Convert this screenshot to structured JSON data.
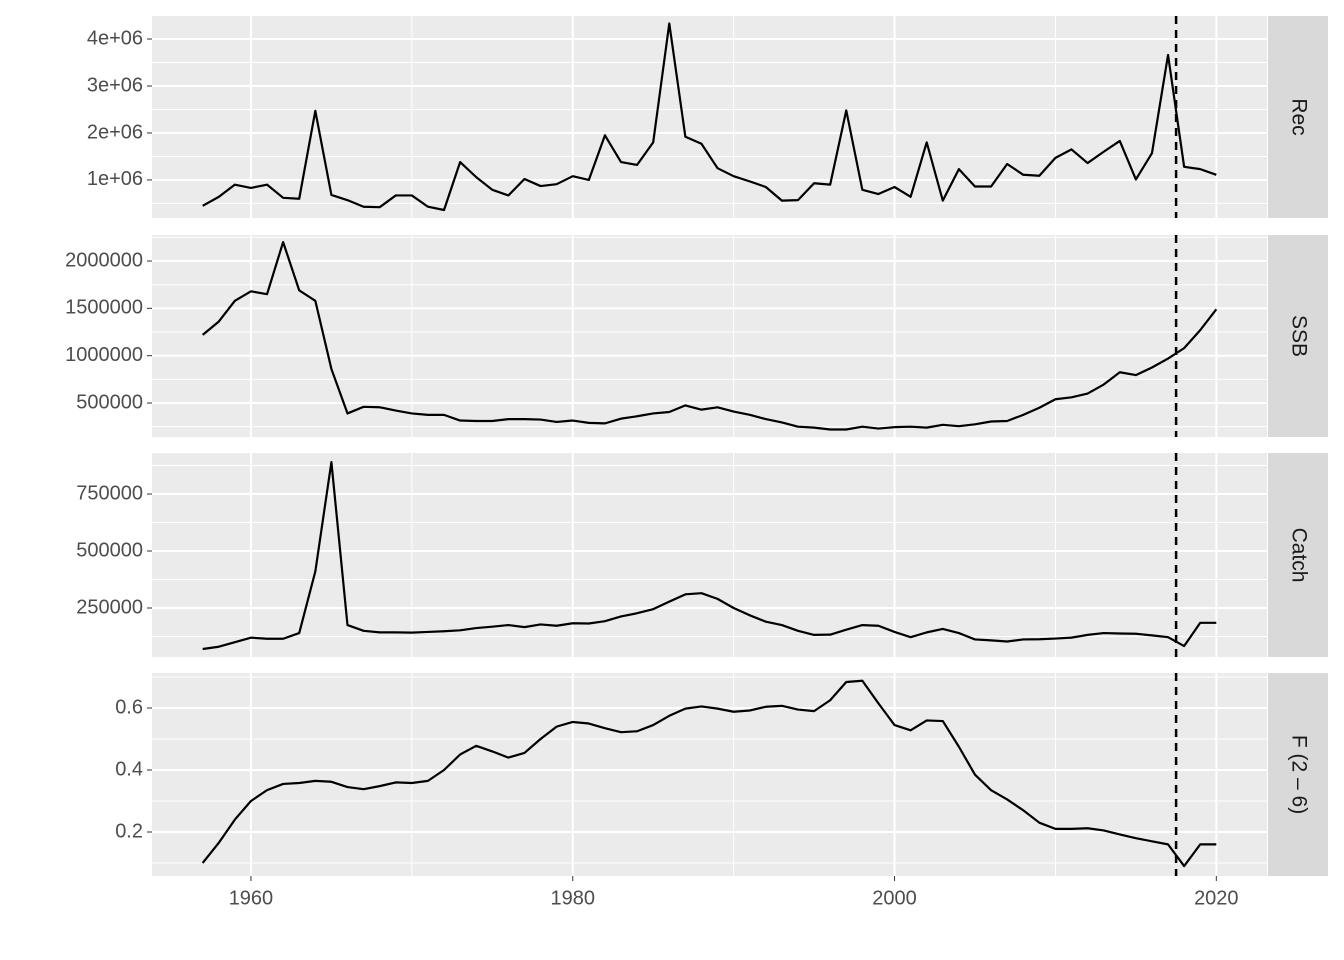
{
  "chart_data": {
    "type": "line",
    "x": [
      1957,
      1958,
      1959,
      1960,
      1961,
      1962,
      1963,
      1964,
      1965,
      1966,
      1967,
      1968,
      1969,
      1970,
      1971,
      1972,
      1973,
      1974,
      1975,
      1976,
      1977,
      1978,
      1979,
      1980,
      1981,
      1982,
      1983,
      1984,
      1985,
      1986,
      1987,
      1988,
      1989,
      1990,
      1991,
      1992,
      1993,
      1994,
      1995,
      1996,
      1997,
      1998,
      1999,
      2000,
      2001,
      2002,
      2003,
      2004,
      2005,
      2006,
      2007,
      2008,
      2009,
      2010,
      2011,
      2012,
      2013,
      2014,
      2015,
      2016,
      2017,
      2018,
      2019,
      2020
    ],
    "xlim": [
      1953.85,
      2023.15
    ],
    "xticks": [
      1960,
      1980,
      2000,
      2020
    ],
    "vline": 2017.5,
    "color": "#000000",
    "grid": true,
    "panels": [
      {
        "name": "Rec",
        "values": [
          450000,
          640000,
          900000,
          830000,
          900000,
          620000,
          600000,
          2470000,
          680000,
          570000,
          430000,
          420000,
          670000,
          670000,
          430000,
          360000,
          1380000,
          1060000,
          790000,
          670000,
          1020000,
          870000,
          910000,
          1080000,
          1000000,
          1950000,
          1380000,
          1320000,
          1800000,
          4330000,
          1920000,
          1770000,
          1250000,
          1080000,
          970000,
          850000,
          560000,
          570000,
          930000,
          900000,
          2480000,
          790000,
          700000,
          850000,
          640000,
          1800000,
          560000,
          1230000,
          860000,
          860000,
          1340000,
          1110000,
          1090000,
          1470000,
          1650000,
          1360000,
          1600000,
          1830000,
          1010000,
          1570000,
          3660000,
          1280000,
          1230000,
          1110000
        ],
        "ylim": [
          190000,
          4490000
        ],
        "yticks": [
          {
            "value": 1000000,
            "label": "1e+06"
          },
          {
            "value": 2000000,
            "label": "2e+06"
          },
          {
            "value": 3000000,
            "label": "3e+06"
          },
          {
            "value": 4000000,
            "label": "4e+06"
          }
        ]
      },
      {
        "name": "SSB",
        "values": [
          1220000,
          1360000,
          1580000,
          1680000,
          1650000,
          2200000,
          1690000,
          1580000,
          860000,
          390000,
          460000,
          455000,
          420000,
          390000,
          375000,
          375000,
          315000,
          310000,
          310000,
          330000,
          330000,
          325000,
          300000,
          315000,
          290000,
          285000,
          335000,
          360000,
          390000,
          405000,
          475000,
          430000,
          455000,
          410000,
          375000,
          330000,
          295000,
          250000,
          240000,
          220000,
          220000,
          250000,
          230000,
          245000,
          250000,
          240000,
          270000,
          255000,
          275000,
          305000,
          310000,
          375000,
          450000,
          540000,
          560000,
          600000,
          695000,
          825000,
          795000,
          875000,
          970000,
          1080000,
          1270000,
          1490000
        ],
        "ylim": [
          141000,
          2275000
        ],
        "yticks": [
          500000,
          1000000,
          1500000,
          2000000
        ]
      },
      {
        "name": "Catch",
        "values": [
          70000,
          80000,
          100000,
          120000,
          115000,
          115000,
          140000,
          410000,
          890000,
          175000,
          150000,
          143000,
          143000,
          142000,
          145000,
          148000,
          152000,
          162000,
          168000,
          175000,
          166000,
          178000,
          172000,
          183000,
          182000,
          192000,
          213000,
          227000,
          245000,
          278000,
          310000,
          315000,
          290000,
          250000,
          218000,
          190000,
          175000,
          150000,
          132000,
          133000,
          155000,
          175000,
          172000,
          145000,
          122000,
          143000,
          158000,
          140000,
          112000,
          108000,
          103000,
          112000,
          113000,
          116000,
          120000,
          132000,
          140000,
          138000,
          137000,
          130000,
          122000,
          83000,
          185000,
          185000
        ],
        "ylim": [
          35000,
          930000
        ],
        "yticks": [
          250000,
          500000,
          750000
        ]
      },
      {
        "name": "F (2 – 6)",
        "values": [
          0.1,
          0.165,
          0.24,
          0.3,
          0.335,
          0.355,
          0.358,
          0.365,
          0.362,
          0.345,
          0.338,
          0.348,
          0.36,
          0.358,
          0.365,
          0.4,
          0.45,
          0.478,
          0.46,
          0.44,
          0.455,
          0.5,
          0.54,
          0.555,
          0.55,
          0.535,
          0.522,
          0.525,
          0.545,
          0.575,
          0.598,
          0.605,
          0.598,
          0.588,
          0.592,
          0.604,
          0.607,
          0.595,
          0.59,
          0.625,
          0.684,
          0.688,
          0.615,
          0.545,
          0.528,
          0.56,
          0.558,
          0.475,
          0.385,
          0.335,
          0.305,
          0.27,
          0.23,
          0.21,
          0.21,
          0.212,
          0.205,
          0.192,
          0.18,
          0.17,
          0.16,
          0.09,
          0.16,
          0.16
        ],
        "ylim": [
          0.058,
          0.713
        ],
        "yticks": [
          0.2,
          0.4,
          0.6
        ]
      }
    ]
  }
}
